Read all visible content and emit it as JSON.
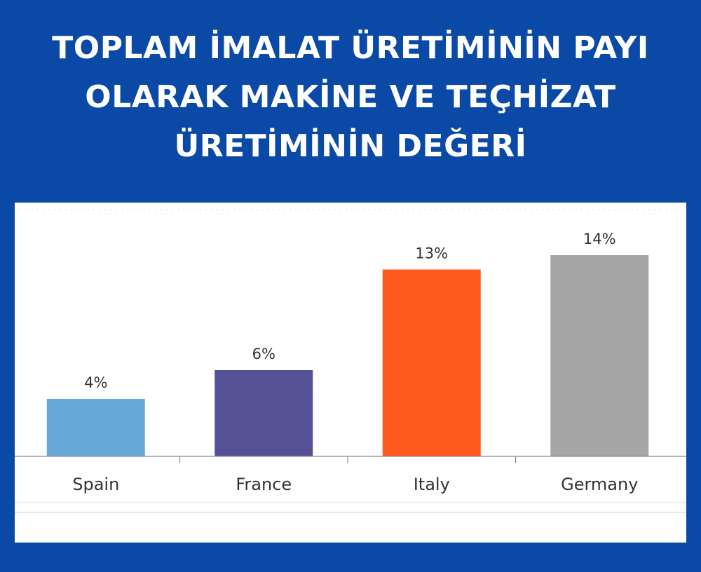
{
  "title_lines": [
    "TOPLAM İMALAT ÜRETİMİNİN PAYI",
    "OLARAK MAKİNE VE TEÇHİZAT",
    "ÜRETİMİNİN DEĞERİ"
  ],
  "chart_data": {
    "type": "bar",
    "title": "TOPLAM İMALAT ÜRETİMİNİN PAYI OLARAK MAKİNE VE TEÇHİZAT ÜRETİMİNİN DEĞERİ",
    "categories": [
      "Spain",
      "France",
      "Italy",
      "Germany"
    ],
    "values": [
      4,
      6,
      13,
      14
    ],
    "value_labels": [
      "4%",
      "6%",
      "13%",
      "14%"
    ],
    "colors": [
      "#66a9d9",
      "#565196",
      "#ff5a1f",
      "#a6a6a6"
    ],
    "xlabel": "",
    "ylabel": "",
    "ylim": [
      0,
      18
    ],
    "grid": false,
    "legend": "none"
  }
}
